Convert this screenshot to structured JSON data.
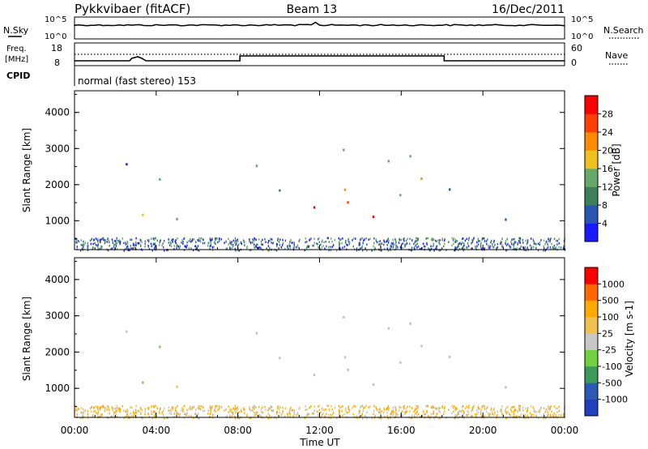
{
  "header": {
    "title": "Pykkvibaer (fitACF)",
    "beam": "Beam 13",
    "date": "16/Dec/2011"
  },
  "noise_panel": {
    "left_label": "N.Sky",
    "right_label": "N.Search",
    "left_ticks": [
      "10^5",
      "10^0"
    ],
    "right_ticks": [
      "10^5",
      "10^0"
    ]
  },
  "freq_panel": {
    "left_label_1": "Freq.",
    "left_label_2": "[MHz]",
    "right_label": "Nave",
    "left_ticks": [
      "18",
      "8"
    ],
    "right_ticks": [
      "60",
      "0"
    ],
    "cpid_label": "CPID",
    "cpid_text": "normal (fast stereo) 153"
  },
  "colors": {
    "power_scale": [
      "#1a1aff",
      "#2a55b4",
      "#3f7f5a",
      "#67a86b",
      "#f0c020",
      "#ff8c00",
      "#ff4000",
      "#ff0000"
    ],
    "velocity_scale": [
      "#ff0000",
      "#ff6a00",
      "#ffaa00",
      "#f0c050",
      "#c8c8c8",
      "#70d040",
      "#3a9a5a",
      "#2a5ab4",
      "#2040c0"
    ],
    "ground_scatter": "#c0c0c0"
  },
  "chart_data": [
    {
      "type": "heatmap",
      "title": "",
      "xlabel": "",
      "ylabel": "Slant Range [km]",
      "x_ticks": [
        "00:00",
        "04:00",
        "08:00",
        "12:00",
        "16:00",
        "20:00",
        "00:00"
      ],
      "y_ticks": [
        "1000",
        "2000",
        "3000",
        "4000"
      ],
      "xlim_hours": [
        0,
        24
      ],
      "ylim_km": [
        200,
        4600
      ],
      "colorbar": {
        "label": "Power [dB]",
        "ticks": [
          "4",
          "8",
          "12",
          "16",
          "20",
          "24",
          "28"
        ]
      }
    },
    {
      "type": "heatmap",
      "title": "",
      "xlabel": "Time UT",
      "ylabel": "Slant Range [km]",
      "x_ticks": [
        "00:00",
        "04:00",
        "08:00",
        "12:00",
        "16:00",
        "20:00",
        "00:00"
      ],
      "y_ticks": [
        "1000",
        "2000",
        "3000",
        "4000"
      ],
      "xlim_hours": [
        0,
        24
      ],
      "ylim_km": [
        200,
        4600
      ],
      "colorbar": {
        "label": "Velocity [m s-1]",
        "ticks": [
          "1000",
          "500",
          "100",
          "25",
          "-25",
          "-100",
          "-500",
          "-1000"
        ]
      }
    }
  ]
}
